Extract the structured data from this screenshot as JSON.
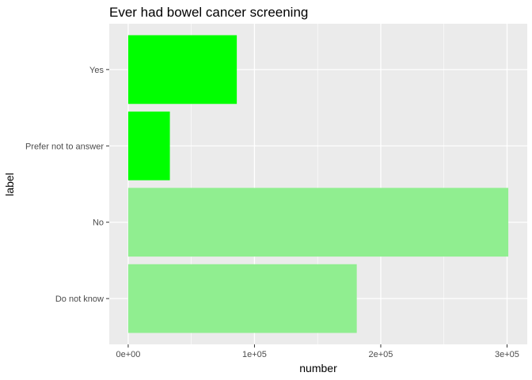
{
  "chart_data": {
    "type": "bar",
    "orientation": "horizontal",
    "title": "Ever had bowel cancer screening",
    "xlabel": "number",
    "ylabel": "label",
    "categories": [
      "Do not know",
      "No",
      "Prefer not to answer",
      "Yes"
    ],
    "values": [
      181000,
      301000,
      33000,
      86000
    ],
    "bar_colors": [
      "#90EE90",
      "#90EE90",
      "#00FF00",
      "#00FF00"
    ],
    "xlim": [
      -15000,
      316000
    ],
    "x_ticks": [
      0,
      100000,
      200000,
      300000
    ],
    "x_tick_labels": [
      "0e+00",
      "1e+05",
      "2e+05",
      "3e+05"
    ],
    "grid": true,
    "legend": "none",
    "panel_background": "#EBEBEB",
    "grid_color": "#FFFFFF"
  }
}
